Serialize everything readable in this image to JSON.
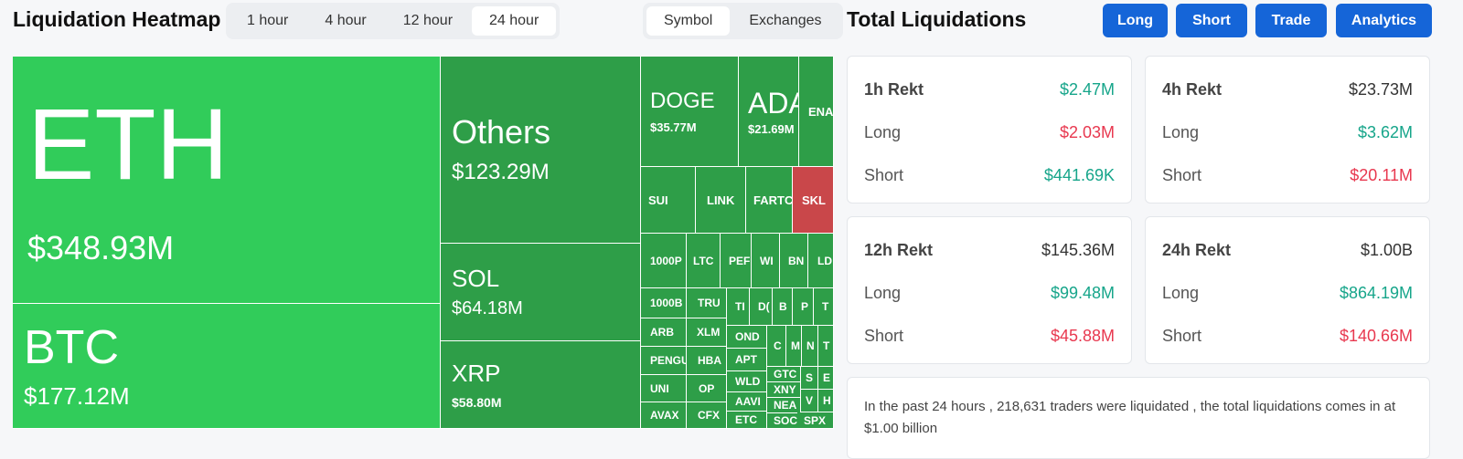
{
  "header": {
    "title": "Liquidation Heatmap",
    "time_tabs": [
      "1 hour",
      "4 hour",
      "12 hour",
      "24 hour"
    ],
    "group_tabs": [
      "Symbol",
      "Exchanges"
    ]
  },
  "heatmap": {
    "tiles": [
      {
        "label": "ETH",
        "value": "$348.93M",
        "color": "#31cc5a"
      },
      {
        "label": "BTC",
        "value": "$177.12M",
        "color": "#31cc5a"
      },
      {
        "label": "Others",
        "value": "$123.29M",
        "color": "#2e9e48"
      },
      {
        "label": "SOL",
        "value": "$64.18M",
        "color": "#2e9e48"
      },
      {
        "label": "XRP",
        "value": "$58.80M",
        "color": "#2e9e48"
      },
      {
        "label": "DOGE",
        "value": "$35.77M",
        "color": "#2e9e48"
      },
      {
        "label": "ADA",
        "value": "$21.69M",
        "color": "#2e9e48"
      },
      {
        "label": "ENA",
        "color": "#2e9e48"
      },
      {
        "label": "SUI",
        "color": "#2e9e48"
      },
      {
        "label": "LINK",
        "color": "#2e9e48"
      },
      {
        "label": "FARTC",
        "color": "#2e9e48"
      },
      {
        "label": "SKL",
        "color": "#c9474a"
      },
      {
        "label": "1000P",
        "color": "#2e9e48"
      },
      {
        "label": "LTC",
        "color": "#2e9e48"
      },
      {
        "label": "PEF",
        "color": "#2e9e48"
      },
      {
        "label": "WI",
        "color": "#2e9e48"
      },
      {
        "label": "BN",
        "color": "#2e9e48"
      },
      {
        "label": "LD",
        "color": "#2e9e48"
      },
      {
        "label": "1000B",
        "color": "#2e9e48"
      },
      {
        "label": "ARB",
        "color": "#2e9e48"
      },
      {
        "label": "PENGU",
        "color": "#2e9e48"
      },
      {
        "label": "UNI",
        "color": "#2e9e48"
      },
      {
        "label": "AVAX",
        "color": "#2e9e48"
      },
      {
        "label": "TRU",
        "color": "#2e9e48"
      },
      {
        "label": "XLM",
        "color": "#2e9e48"
      },
      {
        "label": "HBA",
        "color": "#2e9e48"
      },
      {
        "label": "OP",
        "color": "#2e9e48"
      },
      {
        "label": "CFX",
        "color": "#2e9e48"
      },
      {
        "label": "TI",
        "color": "#2e9e48"
      },
      {
        "label": "D(",
        "color": "#2e9e48"
      },
      {
        "label": "B",
        "color": "#2e9e48"
      },
      {
        "label": "P",
        "color": "#2e9e48"
      },
      {
        "label": "T",
        "color": "#2e9e48"
      },
      {
        "label": "OND",
        "color": "#2e9e48"
      },
      {
        "label": "APT",
        "color": "#2e9e48"
      },
      {
        "label": "WLD",
        "color": "#2e9e48"
      },
      {
        "label": "AAVI",
        "color": "#2e9e48"
      },
      {
        "label": "ETC",
        "color": "#2e9e48"
      },
      {
        "label": "C",
        "color": "#2e9e48"
      },
      {
        "label": "M",
        "color": "#2e9e48"
      },
      {
        "label": "N",
        "color": "#2e9e48"
      },
      {
        "label": "T",
        "color": "#2e9e48"
      },
      {
        "label": "GTC",
        "color": "#2e9e48"
      },
      {
        "label": "XNY",
        "color": "#2e9e48"
      },
      {
        "label": "NEA",
        "color": "#2e9e48"
      },
      {
        "label": "SOC",
        "color": "#2e9e48"
      },
      {
        "label": "S",
        "color": "#2e9e48"
      },
      {
        "label": "E",
        "color": "#2e9e48"
      },
      {
        "label": "V",
        "color": "#2e9e48"
      },
      {
        "label": "H",
        "color": "#2e9e48"
      },
      {
        "label": "SPX",
        "color": "#2e9e48"
      }
    ]
  },
  "totals": {
    "title": "Total Liquidations",
    "buttons": [
      "Long",
      "Short",
      "Trade",
      "Analytics"
    ],
    "cards": [
      {
        "title": "1h Rekt",
        "total": "$2.47M",
        "total_color": "#16a58a",
        "rows": [
          {
            "label": "Long",
            "value": "$2.03M",
            "color": "#e8384f"
          },
          {
            "label": "Short",
            "value": "$441.69K",
            "color": "#16a58a"
          }
        ]
      },
      {
        "title": "4h Rekt",
        "total": "$23.73M",
        "total_color": "#333333",
        "rows": [
          {
            "label": "Long",
            "value": "$3.62M",
            "color": "#16a58a"
          },
          {
            "label": "Short",
            "value": "$20.11M",
            "color": "#e8384f"
          }
        ]
      },
      {
        "title": "12h Rekt",
        "total": "$145.36M",
        "total_color": "#333333",
        "rows": [
          {
            "label": "Long",
            "value": "$99.48M",
            "color": "#16a58a"
          },
          {
            "label": "Short",
            "value": "$45.88M",
            "color": "#e8384f"
          }
        ]
      },
      {
        "title": "24h Rekt",
        "total": "$1.00B",
        "total_color": "#333333",
        "rows": [
          {
            "label": "Long",
            "value": "$864.19M",
            "color": "#16a58a"
          },
          {
            "label": "Short",
            "value": "$140.66M",
            "color": "#e8384f"
          }
        ]
      }
    ],
    "summary": "In the past 24 hours , 218,631 traders were liquidated , the total liquidations comes in at $1.00 billion"
  }
}
